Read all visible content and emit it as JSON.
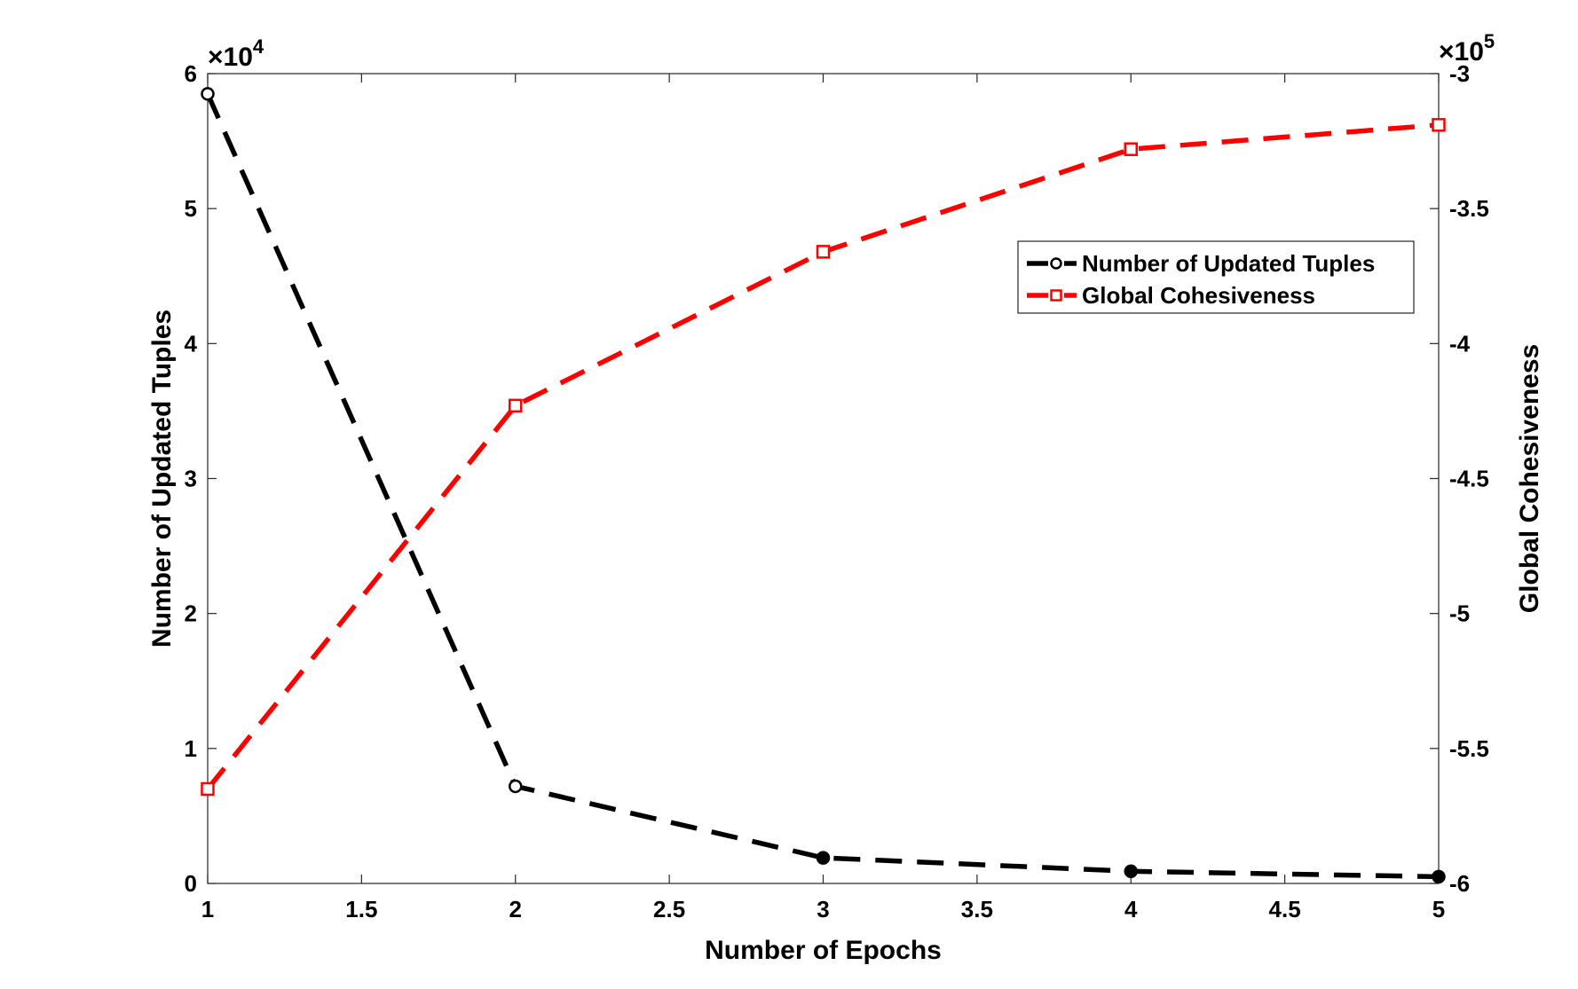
{
  "chart_data": {
    "type": "line",
    "title": "",
    "xlabel": "Number of Epochs",
    "ylabel_left": "Number of Updated Tuples",
    "ylabel_right": "Global Cohesiveness",
    "xlim": [
      1,
      5
    ],
    "ylim_left": [
      0,
      60000
    ],
    "ylim_right": [
      -600000,
      -300000
    ],
    "x_ticks": [
      1,
      1.5,
      2,
      2.5,
      3,
      3.5,
      4,
      4.5,
      5
    ],
    "x_tick_labels": [
      "1",
      "1.5",
      "2",
      "2.5",
      "3",
      "3.5",
      "4",
      "4.5",
      "5"
    ],
    "y_left_ticks": [
      0,
      10000,
      20000,
      30000,
      40000,
      50000,
      60000
    ],
    "y_left_tick_labels": [
      "0",
      "1",
      "2",
      "3",
      "4",
      "5",
      "6"
    ],
    "y_left_exponent": {
      "base": "×10",
      "power": "4"
    },
    "y_right_ticks": [
      -600000,
      -550000,
      -500000,
      -450000,
      -400000,
      -350000,
      -300000
    ],
    "y_right_tick_labels": [
      "-6",
      "-5.5",
      "-5",
      "-4.5",
      "-4",
      "-3.5",
      "-3"
    ],
    "y_right_exponent": {
      "base": "×10",
      "power": "5"
    },
    "grid": false,
    "legend_position": "upper-right",
    "series": [
      {
        "name": "Number of Updated Tuples",
        "axis": "left",
        "color": "#000000",
        "marker": "circle",
        "line_style": "dashed",
        "x": [
          1,
          2,
          3,
          4,
          5
        ],
        "values": [
          58500,
          7200,
          1900,
          900,
          500
        ]
      },
      {
        "name": "Global Cohesiveness",
        "axis": "right",
        "color": "#ff0000",
        "marker": "square",
        "line_style": "dashed",
        "x": [
          1,
          2,
          3,
          4,
          5
        ],
        "values": [
          -565000,
          -423000,
          -366000,
          -328000,
          -319000
        ]
      }
    ]
  }
}
